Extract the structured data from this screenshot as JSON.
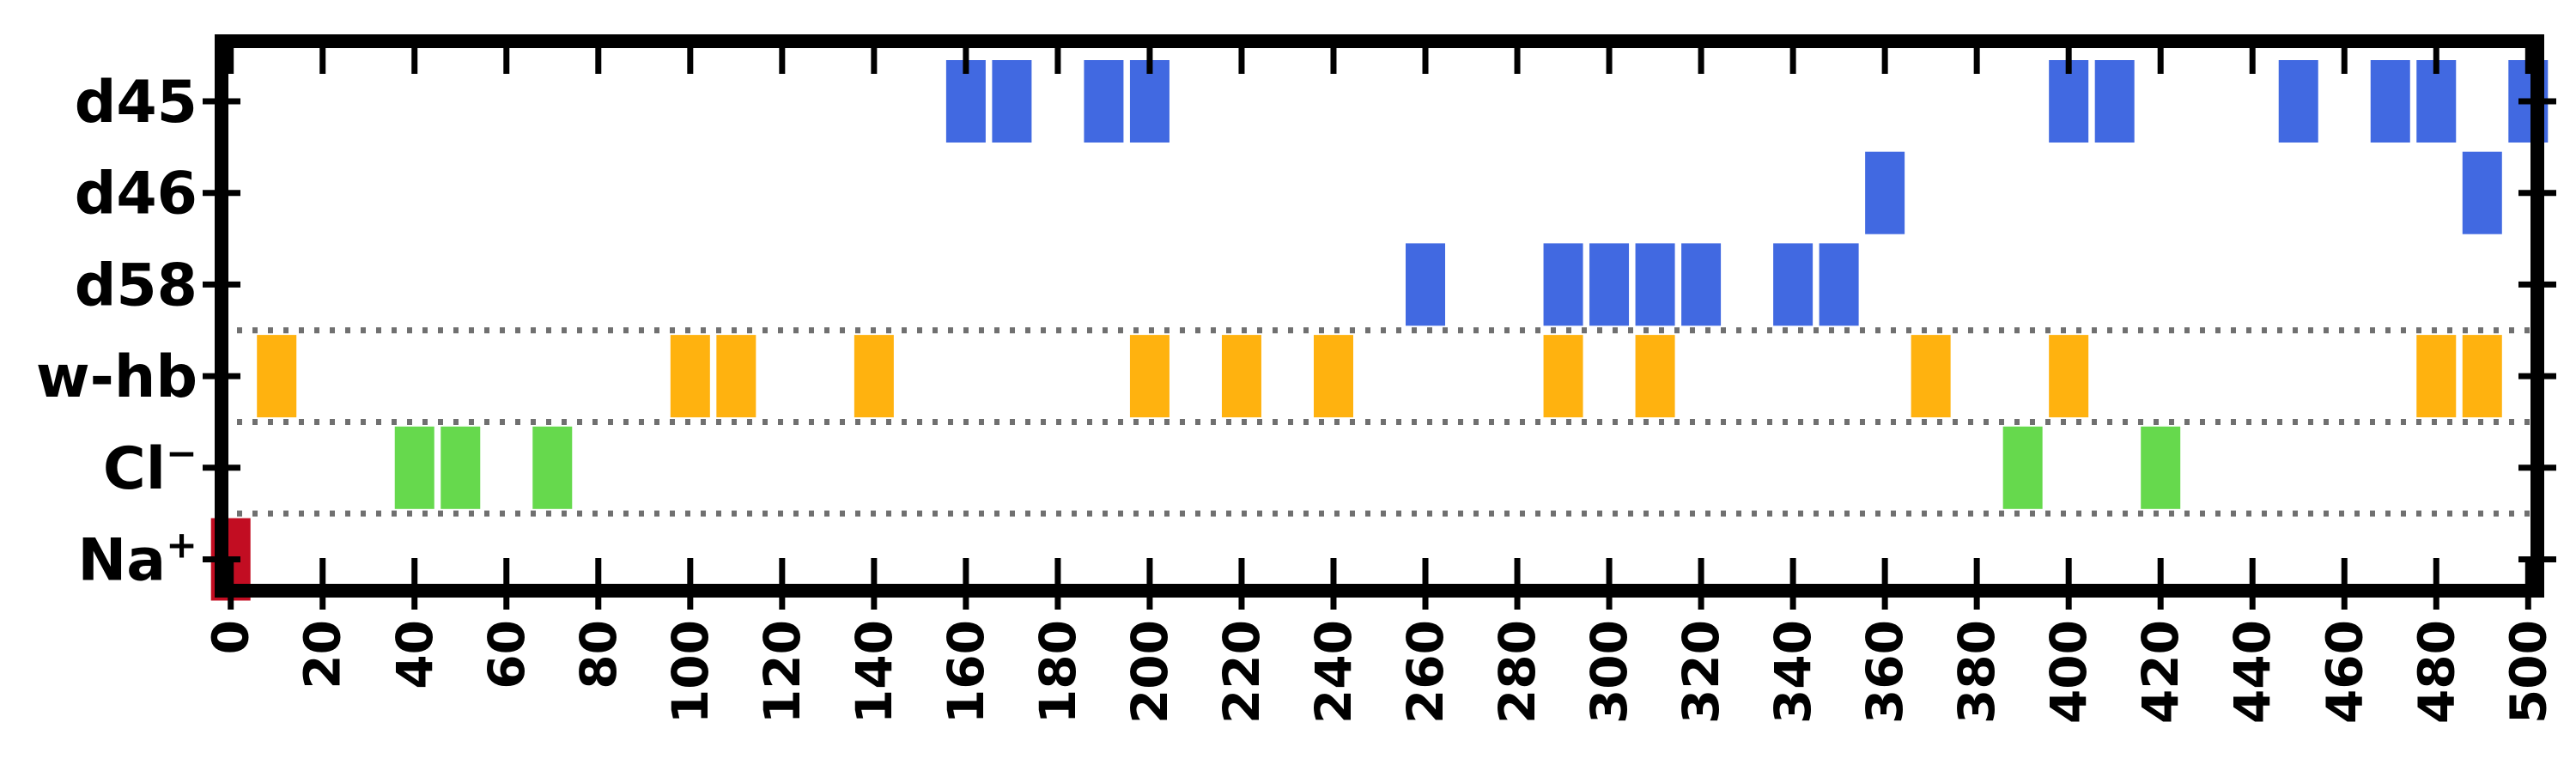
{
  "chart_data": {
    "type": "timeline",
    "title": "",
    "xlabel": "",
    "ylabel": "",
    "xlim": [
      -2,
      502
    ],
    "x_ticks": [
      0,
      20,
      40,
      60,
      80,
      100,
      120,
      140,
      160,
      180,
      200,
      220,
      240,
      260,
      280,
      300,
      320,
      340,
      360,
      380,
      400,
      420,
      440,
      460,
      480,
      500
    ],
    "grid": false,
    "rows": [
      {
        "label": "d45",
        "color": "#4169e1",
        "x": [
          160,
          170,
          190,
          200,
          400,
          410,
          450,
          470,
          480,
          500
        ]
      },
      {
        "label": "d46",
        "color": "#4169e1",
        "x": [
          360,
          490
        ]
      },
      {
        "label": "d58",
        "color": "#4169e1",
        "x": [
          260,
          290,
          300,
          310,
          320,
          340,
          350
        ]
      },
      {
        "label": "w-hb",
        "color": "#ffb20f",
        "x": [
          10,
          100,
          110,
          140,
          200,
          220,
          240,
          290,
          310,
          370,
          400,
          480,
          490
        ]
      },
      {
        "label": "Cl",
        "label_sup": "−",
        "color": "#66d94d",
        "x": [
          40,
          50,
          70,
          390,
          420
        ]
      },
      {
        "label": "Na",
        "label_sup": "+",
        "color": "#c20d22",
        "x": [
          0
        ]
      }
    ],
    "group_separators": [
      "between d58 and w-hb",
      "between w-hb and Cl−",
      "between Cl− and Na+"
    ]
  }
}
